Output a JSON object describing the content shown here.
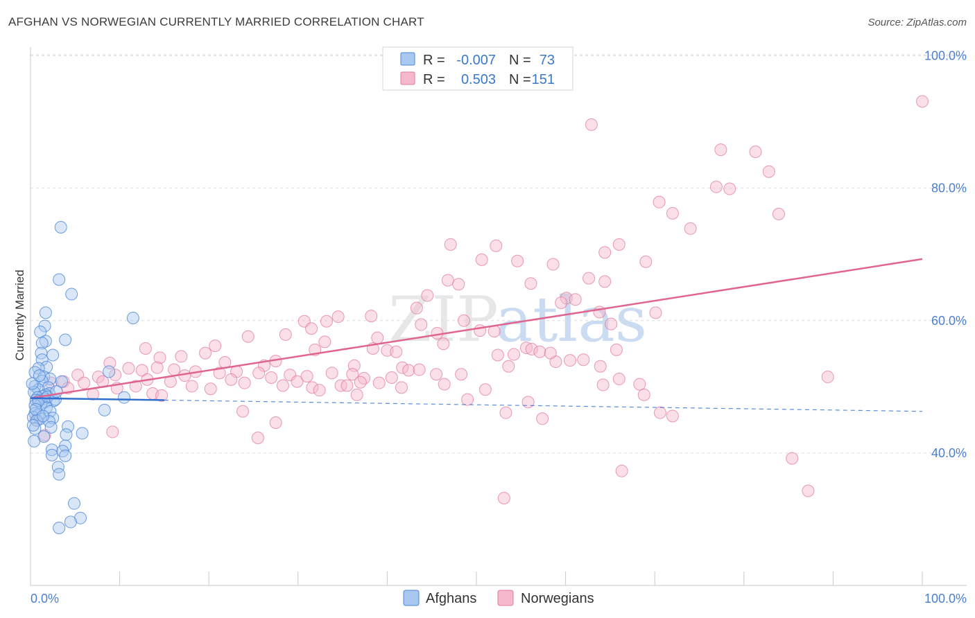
{
  "title": "AFGHAN VS NORWEGIAN CURRENTLY MARRIED CORRELATION CHART",
  "source": "Source: ZipAtlas.com",
  "watermark": "ZIPatlas",
  "legend": {
    "rows": [
      {
        "r_label": "R =",
        "r_value": "-0.007",
        "n_label": "N =",
        "n_value": "73"
      },
      {
        "r_label": "R =",
        "r_value": "0.503",
        "n_label": "N =",
        "n_value": "151"
      }
    ]
  },
  "bottom_legend": [
    "Afghans",
    "Norwegians"
  ],
  "colors": {
    "afghans_fill": "#a8c8f0",
    "afghans_stroke": "#4a86d8",
    "afghans_line": "#2f6fcf",
    "norwegians_fill": "#f5b8cc",
    "norwegians_stroke": "#e07aa0",
    "norwegians_line": "#e0648f",
    "tick_text": "#4a7fd0",
    "grid": "#dcdcdc"
  },
  "chart_data": {
    "type": "scatter",
    "title": "AFGHAN VS NORWEGIAN CURRENTLY MARRIED CORRELATION CHART",
    "xlabel": "",
    "ylabel": "Currently Married",
    "xlim": [
      0,
      100
    ],
    "ylim": [
      20,
      103
    ],
    "x_tick_labels": [
      "0.0%",
      "100.0%"
    ],
    "y_ticks": [
      40,
      60,
      80,
      100
    ],
    "y_tick_labels": [
      "40.0%",
      "60.0%",
      "80.0%",
      "100.0%"
    ],
    "grid": "horizontal dashed",
    "legend_position": "top-center",
    "series": [
      {
        "name": "Afghans",
        "r": -0.007,
        "n": 73,
        "trend": {
          "x0": 0,
          "y0": 48.3,
          "x1": 100,
          "y1": 46.3,
          "solid_until_x": 15
        },
        "points": [
          [
            3.4,
            74.1
          ],
          [
            3.2,
            66.2
          ],
          [
            4.6,
            64.0
          ],
          [
            1.7,
            61.2
          ],
          [
            11.5,
            60.4
          ],
          [
            1.6,
            59.2
          ],
          [
            1.1,
            58.3
          ],
          [
            3.9,
            57.1
          ],
          [
            1.7,
            56.9
          ],
          [
            1.3,
            56.6
          ],
          [
            1.2,
            55.1
          ],
          [
            2.5,
            54.8
          ],
          [
            1.3,
            54.1
          ],
          [
            1.8,
            53.0
          ],
          [
            0.9,
            52.8
          ],
          [
            8.8,
            52.3
          ],
          [
            0.5,
            52.2
          ],
          [
            1.5,
            51.5
          ],
          [
            2.2,
            51.2
          ],
          [
            1.3,
            50.9
          ],
          [
            3.5,
            50.8
          ],
          [
            0.5,
            50.1
          ],
          [
            2.0,
            49.9
          ],
          [
            0.9,
            49.6
          ],
          [
            0.4,
            49.2
          ],
          [
            2.1,
            49.0
          ],
          [
            1.7,
            48.8
          ],
          [
            1.4,
            48.6
          ],
          [
            0.8,
            48.4
          ],
          [
            1.6,
            48.2
          ],
          [
            10.5,
            48.4
          ],
          [
            0.6,
            48.0
          ],
          [
            2.6,
            47.9
          ],
          [
            1.7,
            47.7
          ],
          [
            1.2,
            47.5
          ],
          [
            0.5,
            47.2
          ],
          [
            1.8,
            46.9
          ],
          [
            8.3,
            46.5
          ],
          [
            2.2,
            46.3
          ],
          [
            0.5,
            46.0
          ],
          [
            0.9,
            45.8
          ],
          [
            0.3,
            45.4
          ],
          [
            2.5,
            45.3
          ],
          [
            1.1,
            45.2
          ],
          [
            0.7,
            44.9
          ],
          [
            2.1,
            44.8
          ],
          [
            4.2,
            44.0
          ],
          [
            2.3,
            43.9
          ],
          [
            0.5,
            43.7
          ],
          [
            5.8,
            43.0
          ],
          [
            4.0,
            42.8
          ],
          [
            1.5,
            42.5
          ],
          [
            0.4,
            41.8
          ],
          [
            3.9,
            41.1
          ],
          [
            2.4,
            40.5
          ],
          [
            3.6,
            40.3
          ],
          [
            2.4,
            39.7
          ],
          [
            3.9,
            39.6
          ],
          [
            3.1,
            37.9
          ],
          [
            3.2,
            36.8
          ],
          [
            4.9,
            32.4
          ],
          [
            5.6,
            30.2
          ],
          [
            4.5,
            29.6
          ],
          [
            3.2,
            28.7
          ],
          [
            0.9,
            47.9
          ],
          [
            1.9,
            48.5
          ],
          [
            2.8,
            48.1
          ],
          [
            0.6,
            46.6
          ],
          [
            1.4,
            45.6
          ],
          [
            0.2,
            50.5
          ],
          [
            2.9,
            49.3
          ],
          [
            1.0,
            51.7
          ],
          [
            0.3,
            44.2
          ]
        ]
      },
      {
        "name": "Norwegians",
        "r": 0.503,
        "n": 151,
        "trend": {
          "x0": 0,
          "y0": 48.3,
          "x1": 100,
          "y1": 69.3
        },
        "points": [
          [
            100,
            93.1
          ],
          [
            62.9,
            89.6
          ],
          [
            77.4,
            85.8
          ],
          [
            81.3,
            85.5
          ],
          [
            82.8,
            82.5
          ],
          [
            76.9,
            80.2
          ],
          [
            78.4,
            79.9
          ],
          [
            70.5,
            77.9
          ],
          [
            72.0,
            76.2
          ],
          [
            83.9,
            76.1
          ],
          [
            74.0,
            73.9
          ],
          [
            47.1,
            71.5
          ],
          [
            64.4,
            70.3
          ],
          [
            66.0,
            71.5
          ],
          [
            52.2,
            71.3
          ],
          [
            50.6,
            69.2
          ],
          [
            54.6,
            69.0
          ],
          [
            58.6,
            68.5
          ],
          [
            69.0,
            68.9
          ],
          [
            62.6,
            66.4
          ],
          [
            46.8,
            66.1
          ],
          [
            48.0,
            65.5
          ],
          [
            56.1,
            65.6
          ],
          [
            64.4,
            65.9
          ],
          [
            60.1,
            63.4
          ],
          [
            61.1,
            63.2
          ],
          [
            59.5,
            62.7
          ],
          [
            44.5,
            63.8
          ],
          [
            43.3,
            61.9
          ],
          [
            70.1,
            61.2
          ],
          [
            63.8,
            61.3
          ],
          [
            48.6,
            60.0
          ],
          [
            38.2,
            60.7
          ],
          [
            34.5,
            60.6
          ],
          [
            33.2,
            59.9
          ],
          [
            30.7,
            59.9
          ],
          [
            31.5,
            58.8
          ],
          [
            43.8,
            59.4
          ],
          [
            65.1,
            59.5
          ],
          [
            50.4,
            58.5
          ],
          [
            52.0,
            58.4
          ],
          [
            45.6,
            58.1
          ],
          [
            28.6,
            57.9
          ],
          [
            24.4,
            57.6
          ],
          [
            38.9,
            57.4
          ],
          [
            46.3,
            56.5
          ],
          [
            33.0,
            56.8
          ],
          [
            20.7,
            56.2
          ],
          [
            12.9,
            55.8
          ],
          [
            16.9,
            54.6
          ],
          [
            14.5,
            54.4
          ],
          [
            31.9,
            55.6
          ],
          [
            40.0,
            55.5
          ],
          [
            38.4,
            55.8
          ],
          [
            41.0,
            55.3
          ],
          [
            55.6,
            55.9
          ],
          [
            56.2,
            55.7
          ],
          [
            57.1,
            55.3
          ],
          [
            60.5,
            54.0
          ],
          [
            65.7,
            55.6
          ],
          [
            19.6,
            55.1
          ],
          [
            21.8,
            53.7
          ],
          [
            27.5,
            53.9
          ],
          [
            26.2,
            53.2
          ],
          [
            36.3,
            53.2
          ],
          [
            52.4,
            54.8
          ],
          [
            54.2,
            54.9
          ],
          [
            58.9,
            53.8
          ],
          [
            62.0,
            54.1
          ],
          [
            63.9,
            53.1
          ],
          [
            8.9,
            53.6
          ],
          [
            11.0,
            52.8
          ],
          [
            12.5,
            52.5
          ],
          [
            14.2,
            52.9
          ],
          [
            16.1,
            52.6
          ],
          [
            18.5,
            52.3
          ],
          [
            21.2,
            52.1
          ],
          [
            23.1,
            52.3
          ],
          [
            25.6,
            52.1
          ],
          [
            29.1,
            51.8
          ],
          [
            33.8,
            52.1
          ],
          [
            36.1,
            51.9
          ],
          [
            41.7,
            52.9
          ],
          [
            42.4,
            52.5
          ],
          [
            43.6,
            52.6
          ],
          [
            48.3,
            51.9
          ],
          [
            53.6,
            53.1
          ],
          [
            58.3,
            55.1
          ],
          [
            5.3,
            51.8
          ],
          [
            7.6,
            51.5
          ],
          [
            9.5,
            51.8
          ],
          [
            13.1,
            51.1
          ],
          [
            17.3,
            51.7
          ],
          [
            22.5,
            51.1
          ],
          [
            27.0,
            51.4
          ],
          [
            29.9,
            50.8
          ],
          [
            31.0,
            51.6
          ],
          [
            34.8,
            50.2
          ],
          [
            37.4,
            51.3
          ],
          [
            40.5,
            51.4
          ],
          [
            45.5,
            51.9
          ],
          [
            46.4,
            50.4
          ],
          [
            2.3,
            50.6
          ],
          [
            3.7,
            50.8
          ],
          [
            6.0,
            50.6
          ],
          [
            8.1,
            50.8
          ],
          [
            11.8,
            50.1
          ],
          [
            15.7,
            50.8
          ],
          [
            18.1,
            50.1
          ],
          [
            24.0,
            50.6
          ],
          [
            28.3,
            50.2
          ],
          [
            31.6,
            49.9
          ],
          [
            35.5,
            50.2
          ],
          [
            37.0,
            50.7
          ],
          [
            39.1,
            50.6
          ],
          [
            41.6,
            49.9
          ],
          [
            4.2,
            49.8
          ],
          [
            9.7,
            49.8
          ],
          [
            20.2,
            49.7
          ],
          [
            32.4,
            49.5
          ],
          [
            51.0,
            49.6
          ],
          [
            66.0,
            51.2
          ],
          [
            68.3,
            50.4
          ],
          [
            89.4,
            51.5
          ],
          [
            7.0,
            48.9
          ],
          [
            13.7,
            49.0
          ],
          [
            14.7,
            48.7
          ],
          [
            68.8,
            48.8
          ],
          [
            49.0,
            48.1
          ],
          [
            55.8,
            47.7
          ],
          [
            23.8,
            46.3
          ],
          [
            27.5,
            44.6
          ],
          [
            36.6,
            48.8
          ],
          [
            64.2,
            50.3
          ],
          [
            70.6,
            46.1
          ],
          [
            72.0,
            45.6
          ],
          [
            53.3,
            46.1
          ],
          [
            57.4,
            45.2
          ],
          [
            25.5,
            42.3
          ],
          [
            9.2,
            43.2
          ],
          [
            1.6,
            42.7
          ],
          [
            85.4,
            39.2
          ],
          [
            66.3,
            37.3
          ],
          [
            87.2,
            34.3
          ],
          [
            53.1,
            33.2
          ],
          [
            0.6,
            45.0
          ]
        ]
      }
    ]
  }
}
